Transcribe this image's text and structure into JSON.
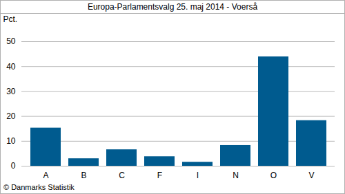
{
  "chart_data": {
    "type": "bar",
    "title": "Europa-Parlamentsvalg 25. maj 2014 - Voerså",
    "y_label": "Pct.",
    "caption": "© Danmarks Statistik",
    "categories": [
      "A",
      "B",
      "C",
      "F",
      "I",
      "N",
      "O",
      "V"
    ],
    "values": [
      15.3,
      3.0,
      6.6,
      3.8,
      1.6,
      8.3,
      43.9,
      18.3
    ],
    "color": "#005b8f",
    "ylim": [
      0,
      50
    ],
    "yticks": [
      0,
      10,
      20,
      30,
      40,
      50
    ],
    "grid": true
  }
}
